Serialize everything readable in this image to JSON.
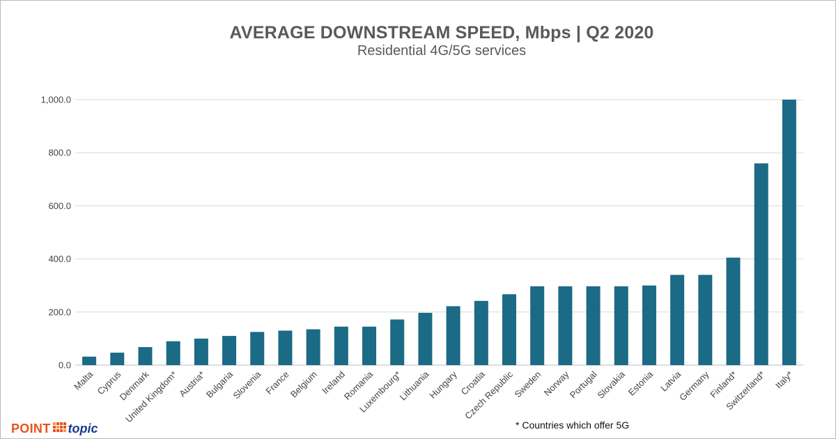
{
  "chart_data": {
    "type": "bar",
    "title": "AVERAGE DOWNSTREAM SPEED, Mbps | Q2 2020",
    "subtitle": "Residential 4G/5G services",
    "xlabel": "",
    "ylabel": "",
    "ylim": [
      0,
      1000
    ],
    "yticks": [
      0,
      200,
      400,
      600,
      800,
      1000
    ],
    "ytick_labels": [
      "0.0",
      "200.0",
      "400.0",
      "600.0",
      "800.0",
      "1,000.0"
    ],
    "grid": true,
    "bar_color": "#1b6a86",
    "categories": [
      "Malta",
      "Cyprus",
      "Denmark",
      "United Kingdom*",
      "Austria*",
      "Bulgaria",
      "Slovenia",
      "France",
      "Belgium",
      "Ireland",
      "Romania",
      "Luxembourg*",
      "Lithuania",
      "Hungary",
      "Croatia",
      "Czech Republic",
      "Sweden",
      "Norway",
      "Portugal",
      "Slovakia",
      "Estonia",
      "Latvia",
      "Germany",
      "Finland*",
      "Switzerland*",
      "Italy*"
    ],
    "values": [
      32,
      47,
      68,
      90,
      100,
      110,
      125,
      130,
      135,
      145,
      145,
      172,
      197,
      222,
      242,
      267,
      297,
      297,
      297,
      297,
      300,
      340,
      340,
      405,
      760,
      1000
    ]
  },
  "footnote": "* Countries which offer 5G",
  "logo": {
    "part1": "POINT",
    "part2": "topic",
    "color1": "#e8521f",
    "color2": "#1e3a8c"
  }
}
